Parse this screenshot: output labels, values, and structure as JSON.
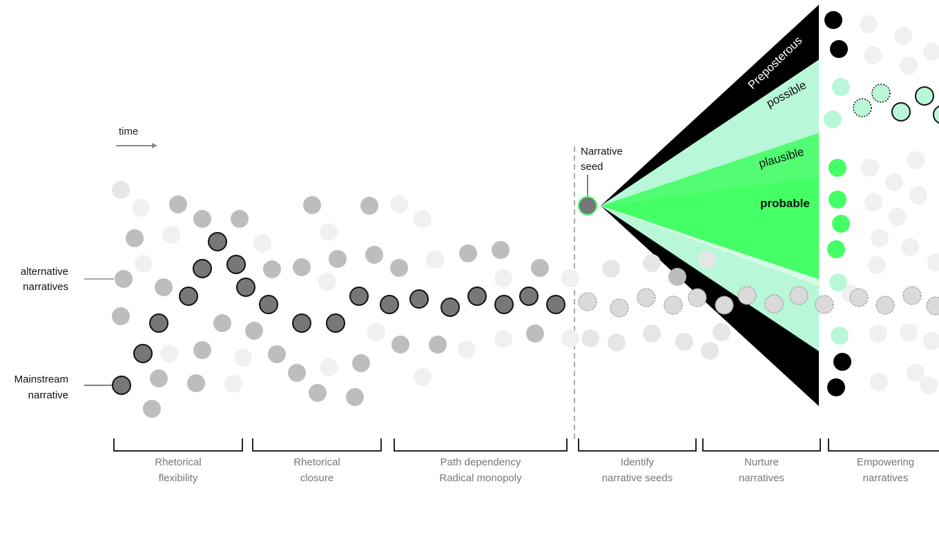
{
  "time_label": "time",
  "left_labels": {
    "alternative": [
      "alternative",
      "narratives"
    ],
    "mainstream": [
      "Mainstream",
      "narrative"
    ]
  },
  "seed_label": [
    "Narrative",
    "seed"
  ],
  "cone_labels": {
    "preposterous": "Preposterous",
    "possible": "possible",
    "plausible": "plausible",
    "probable": "probable"
  },
  "phases": [
    [
      "Rhetorical",
      "flexibility"
    ],
    [
      "Rhetorical",
      "closure"
    ],
    [
      "Path dependency",
      "Radical monopoly"
    ],
    [
      "Identify",
      "narrative seeds"
    ],
    [
      "Nurture",
      "narratives"
    ],
    [
      "Empowering",
      "narratives"
    ]
  ],
  "colors": {
    "dark_dot": "#777777",
    "mid_dot": "#bdbdbd",
    "light_dot": "#e6e6e6",
    "probable": "#44ff66",
    "possible": "#b8f7d8",
    "preposterous": "#000000"
  }
}
